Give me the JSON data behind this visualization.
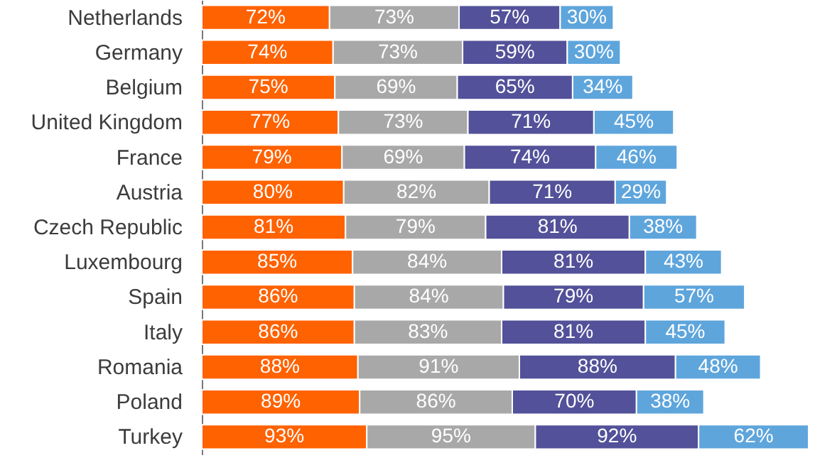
{
  "chart_data": {
    "type": "bar",
    "orientation": "horizontal",
    "stacked": true,
    "categories": [
      "Netherlands",
      "Germany",
      "Belgium",
      "United Kingdom",
      "France",
      "Austria",
      "Czech Republic",
      "Luxembourg",
      "Spain",
      "Italy",
      "Romania",
      "Poland",
      "Turkey"
    ],
    "series": [
      {
        "color": "#ff6200",
        "values": [
          72,
          74,
          75,
          77,
          79,
          80,
          81,
          85,
          86,
          86,
          88,
          89,
          93
        ],
        "value_labels": [
          "72%",
          "74%",
          "75%",
          "77%",
          "79%",
          "80%",
          "81%",
          "85%",
          "86%",
          "86%",
          "88%",
          "89%",
          "93%"
        ]
      },
      {
        "color": "#a8a8a8",
        "values": [
          73,
          73,
          69,
          73,
          69,
          82,
          79,
          84,
          84,
          83,
          91,
          86,
          95
        ],
        "value_labels": [
          "73%",
          "73%",
          "69%",
          "73%",
          "69%",
          "82%",
          "79%",
          "84%",
          "84%",
          "83%",
          "91%",
          "86%",
          "95%"
        ]
      },
      {
        "color": "#525199",
        "values": [
          57,
          59,
          65,
          71,
          74,
          71,
          81,
          81,
          79,
          81,
          88,
          70,
          92
        ],
        "value_labels": [
          "57%",
          "59%",
          "65%",
          "71%",
          "74%",
          "71%",
          "81%",
          "81%",
          "79%",
          "81%",
          "88%",
          "70%",
          "92%"
        ]
      },
      {
        "color": "#5ea5dc",
        "values": [
          30,
          30,
          34,
          45,
          46,
          29,
          38,
          43,
          57,
          45,
          48,
          38,
          62
        ],
        "value_labels": [
          "30%",
          "30%",
          "34%",
          "45%",
          "46%",
          "29%",
          "38%",
          "43%",
          "57%",
          "45%",
          "48%",
          "38%",
          "62%"
        ]
      }
    ]
  }
}
